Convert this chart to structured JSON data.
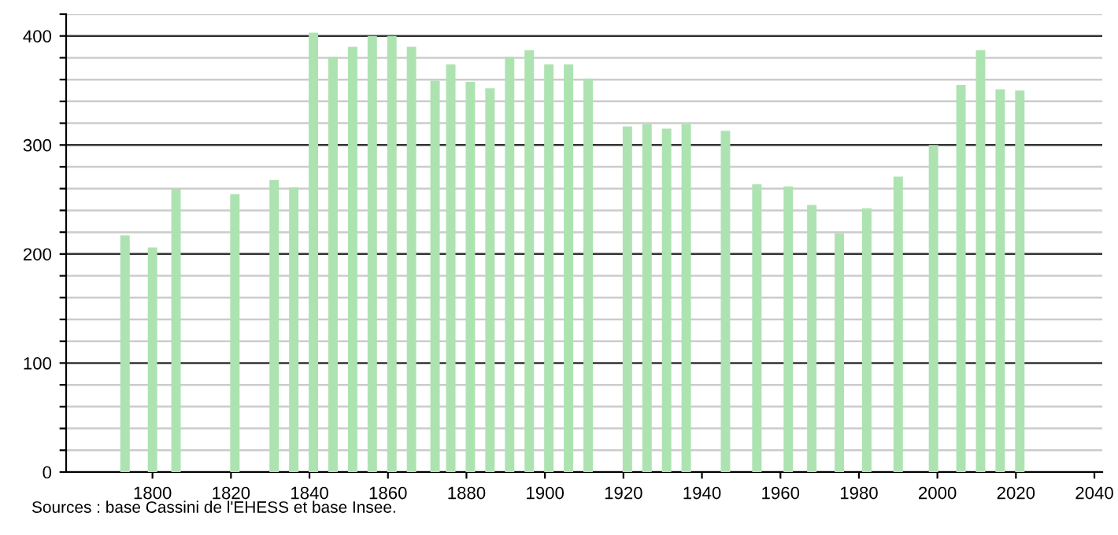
{
  "chart_data": {
    "type": "bar",
    "x": [
      1793,
      1800,
      1806,
      1821,
      1831,
      1836,
      1841,
      1846,
      1851,
      1856,
      1861,
      1866,
      1872,
      1876,
      1881,
      1886,
      1891,
      1896,
      1901,
      1906,
      1911,
      1921,
      1926,
      1931,
      1936,
      1946,
      1954,
      1962,
      1968,
      1975,
      1982,
      1990,
      1999,
      2006,
      2011,
      2016,
      2021
    ],
    "values": [
      217,
      206,
      259,
      255,
      268,
      261,
      403,
      381,
      390,
      400,
      400,
      390,
      359,
      374,
      358,
      352,
      381,
      387,
      374,
      374,
      361,
      317,
      319,
      315,
      319,
      313,
      264,
      262,
      245,
      219,
      242,
      271,
      300,
      355,
      387,
      351,
      350
    ],
    "color": "#ade3b1",
    "xlim": [
      1778,
      2042
    ],
    "xticks": [
      1800,
      1820,
      1840,
      1860,
      1880,
      1900,
      1920,
      1940,
      1960,
      1980,
      2000,
      2020,
      2040
    ],
    "ylim": [
      0,
      420
    ],
    "yticks": [
      0,
      {
        "value": 20,
        "label": null
      },
      {
        "value": 40,
        "label": null
      },
      {
        "value": 60,
        "label": null
      },
      {
        "value": 80,
        "label": null
      },
      100,
      {
        "value": 120,
        "label": null
      },
      {
        "value": 140,
        "label": null
      },
      {
        "value": 160,
        "label": null
      },
      {
        "value": 180,
        "label": null
      },
      200,
      {
        "value": 220,
        "label": null
      },
      {
        "value": 240,
        "label": null
      },
      {
        "value": 260,
        "label": null
      },
      {
        "value": 280,
        "label": null
      },
      300,
      {
        "value": 320,
        "label": null
      },
      {
        "value": 340,
        "label": null
      },
      {
        "value": 360,
        "label": null
      },
      {
        "value": 380,
        "label": null
      },
      400,
      {
        "value": 420,
        "label": null
      }
    ],
    "grid": "y",
    "annotations": [
      "Sources : base Cassini de l'EHESS et base Insee."
    ]
  }
}
